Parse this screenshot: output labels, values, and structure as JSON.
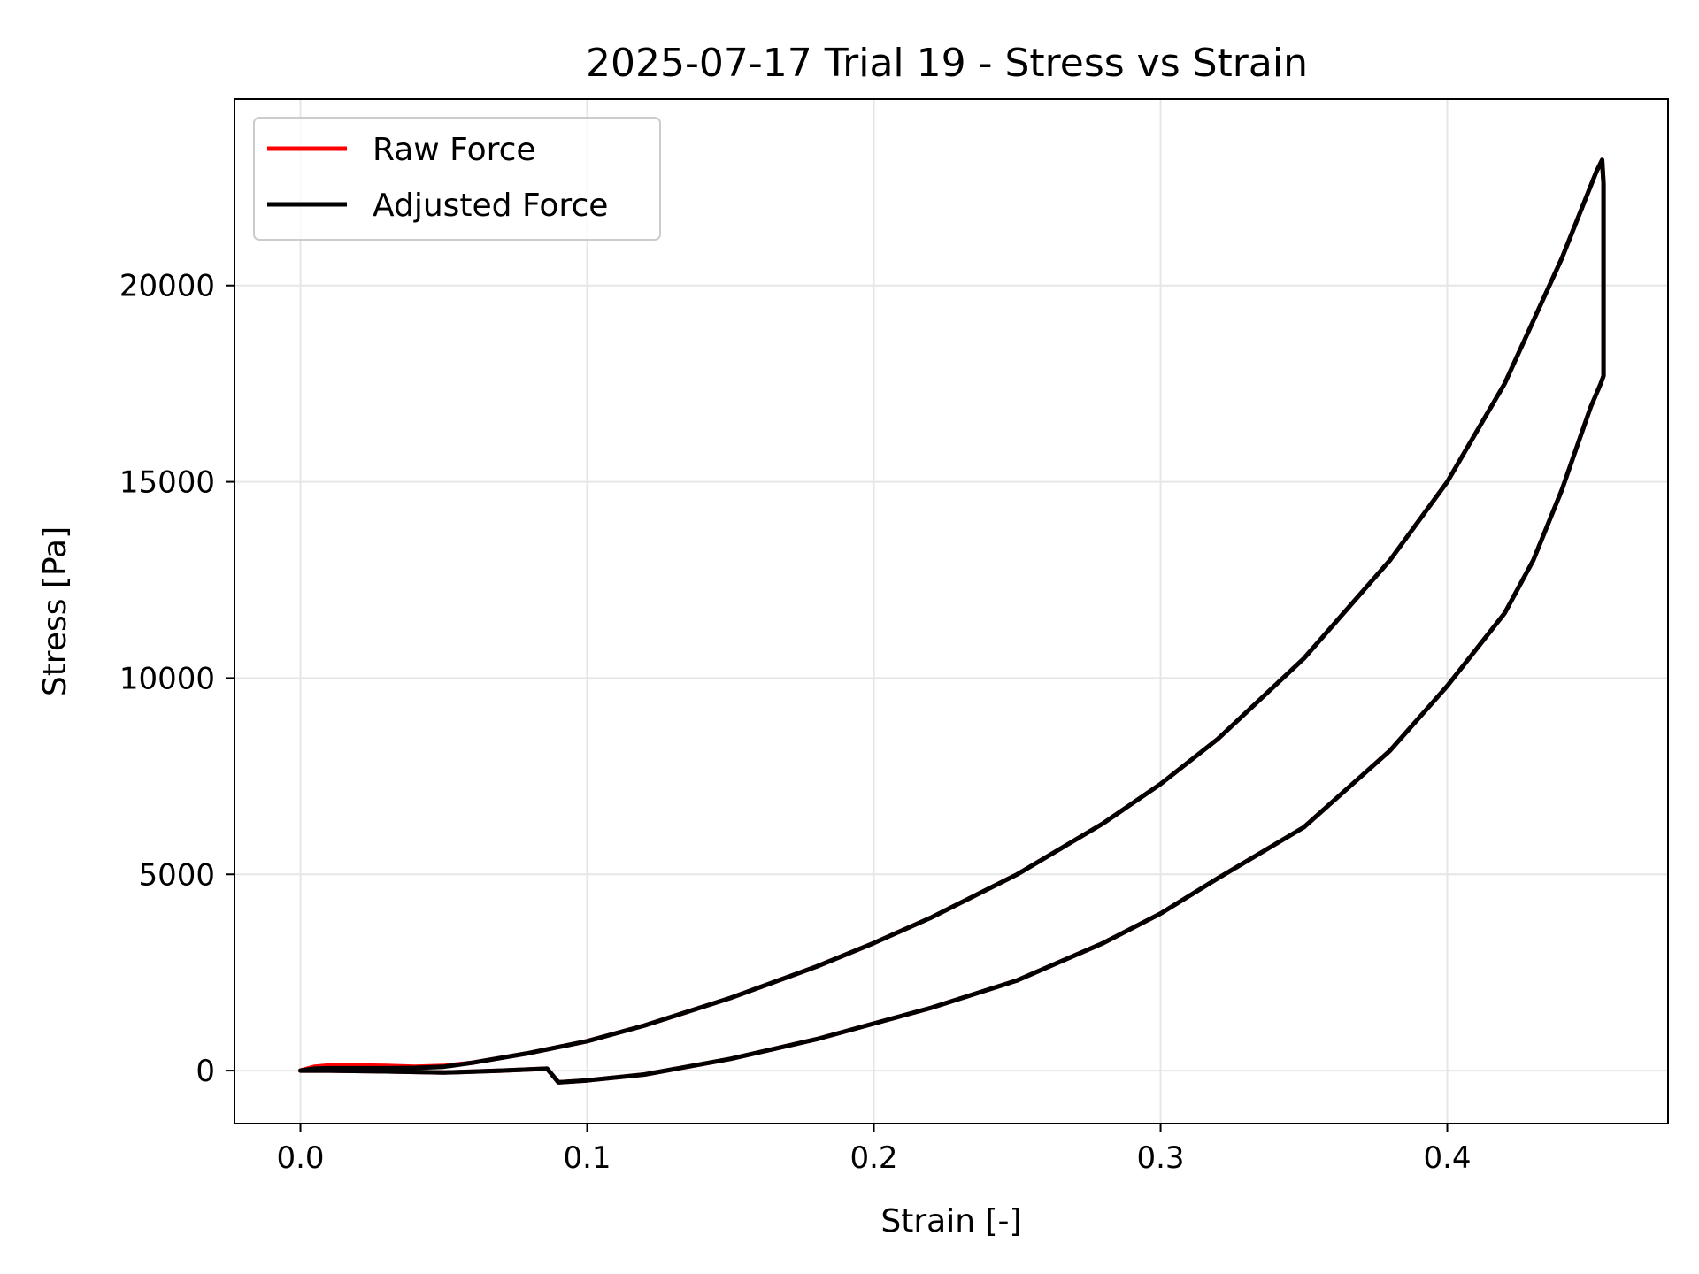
{
  "chart_data": {
    "type": "line",
    "title": "2025-07-17 Trial 19 - Stress vs Strain",
    "xlabel": "Strain [-]",
    "ylabel": "Stress [Pa]",
    "xlim": [
      -0.023,
      0.477
    ],
    "ylim": [
      -1350,
      24750
    ],
    "xticks": [
      0.0,
      0.1,
      0.2,
      0.3,
      0.4
    ],
    "xtick_labels": [
      "0.0",
      "0.1",
      "0.2",
      "0.3",
      "0.4"
    ],
    "yticks": [
      0,
      5000,
      10000,
      15000,
      20000
    ],
    "ytick_labels": [
      "0",
      "5000",
      "10000",
      "15000",
      "20000"
    ],
    "grid": true,
    "legend": "upper left",
    "series": [
      {
        "name": "Raw Force",
        "color": "#ff0000",
        "x": [
          0.0,
          0.005,
          0.01,
          0.02,
          0.03,
          0.04,
          0.05,
          0.06,
          0.08,
          0.1,
          0.12,
          0.15,
          0.18,
          0.2,
          0.22,
          0.25,
          0.28,
          0.3,
          0.32,
          0.35,
          0.38,
          0.4,
          0.42,
          0.44,
          0.452,
          0.454,
          0.4545,
          0.4545,
          0.4535,
          0.45,
          0.44,
          0.43,
          0.42,
          0.4,
          0.38,
          0.35,
          0.32,
          0.3,
          0.28,
          0.25,
          0.22,
          0.2,
          0.18,
          0.15,
          0.12,
          0.1,
          0.09,
          0.086,
          0.07,
          0.05,
          0.03,
          0.01,
          0.0
        ],
        "y": [
          0,
          100,
          130,
          130,
          120,
          100,
          120,
          200,
          450,
          750,
          1150,
          1850,
          2650,
          3250,
          3900,
          5000,
          6300,
          7300,
          8450,
          10500,
          13000,
          15000,
          17500,
          20700,
          22900,
          23200,
          22600,
          17700,
          17500,
          16900,
          14800,
          13000,
          11650,
          9800,
          8150,
          6200,
          4900,
          4000,
          3250,
          2300,
          1600,
          1200,
          800,
          300,
          -100,
          -250,
          -300,
          50,
          0,
          -50,
          -20,
          0,
          0
        ]
      },
      {
        "name": "Adjusted Force",
        "color": "#000000",
        "x": [
          0.0,
          0.005,
          0.01,
          0.02,
          0.03,
          0.04,
          0.05,
          0.06,
          0.08,
          0.1,
          0.12,
          0.15,
          0.18,
          0.2,
          0.22,
          0.25,
          0.28,
          0.3,
          0.32,
          0.35,
          0.38,
          0.4,
          0.42,
          0.44,
          0.452,
          0.454,
          0.4545,
          0.4545,
          0.4535,
          0.45,
          0.44,
          0.43,
          0.42,
          0.4,
          0.38,
          0.35,
          0.32,
          0.3,
          0.28,
          0.25,
          0.22,
          0.2,
          0.18,
          0.15,
          0.12,
          0.1,
          0.09,
          0.086,
          0.07,
          0.05,
          0.03,
          0.01,
          0.0
        ],
        "y": [
          0,
          50,
          60,
          60,
          60,
          70,
          100,
          200,
          450,
          750,
          1150,
          1850,
          2650,
          3250,
          3900,
          5000,
          6300,
          7300,
          8450,
          10500,
          13000,
          15000,
          17500,
          20700,
          22900,
          23200,
          22600,
          17700,
          17500,
          16900,
          14800,
          13000,
          11650,
          9800,
          8150,
          6200,
          4900,
          4000,
          3250,
          2300,
          1600,
          1200,
          800,
          300,
          -100,
          -250,
          -300,
          50,
          0,
          -50,
          -20,
          0,
          0
        ]
      }
    ]
  }
}
